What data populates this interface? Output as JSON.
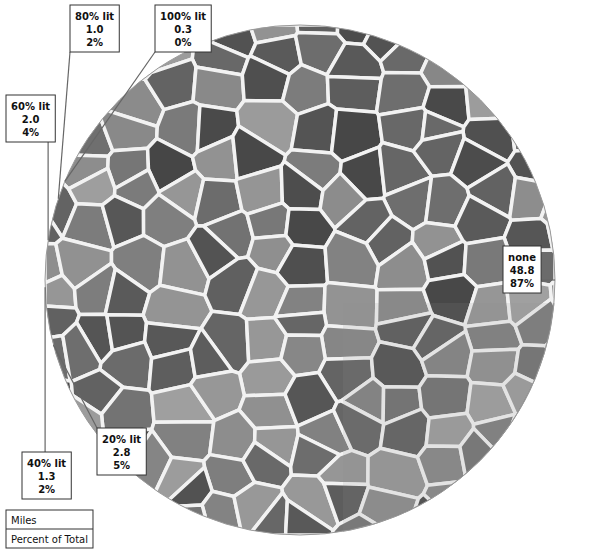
{
  "chart_data": {
    "type": "pie",
    "categories": [
      "20% lit",
      "40% lit",
      "60% lit",
      "80% lit",
      "100% lit",
      "none"
    ],
    "values": [
      2.8,
      1.3,
      2.0,
      1.0,
      0.3,
      48.8
    ],
    "value_labels": [
      "2.8",
      "1.3",
      "2.0",
      "1.0",
      "0.3",
      "48.8"
    ],
    "percents": [
      {
        "value": 5,
        "label": "5%"
      },
      {
        "value": 2,
        "label": "2%"
      },
      {
        "value": 4,
        "label": "4%"
      },
      {
        "value": 2,
        "label": "2%"
      },
      {
        "value": 0,
        "label": "0%"
      },
      {
        "value": 87,
        "label": "87%"
      }
    ],
    "colors": [
      "#6e7010",
      "#9a9c20",
      "#e6e860",
      "#eef070",
      "#f4f680",
      "#8c8c8c"
    ],
    "data_labels": true,
    "label_key": [
      "Miles",
      "Percent of Total"
    ]
  }
}
